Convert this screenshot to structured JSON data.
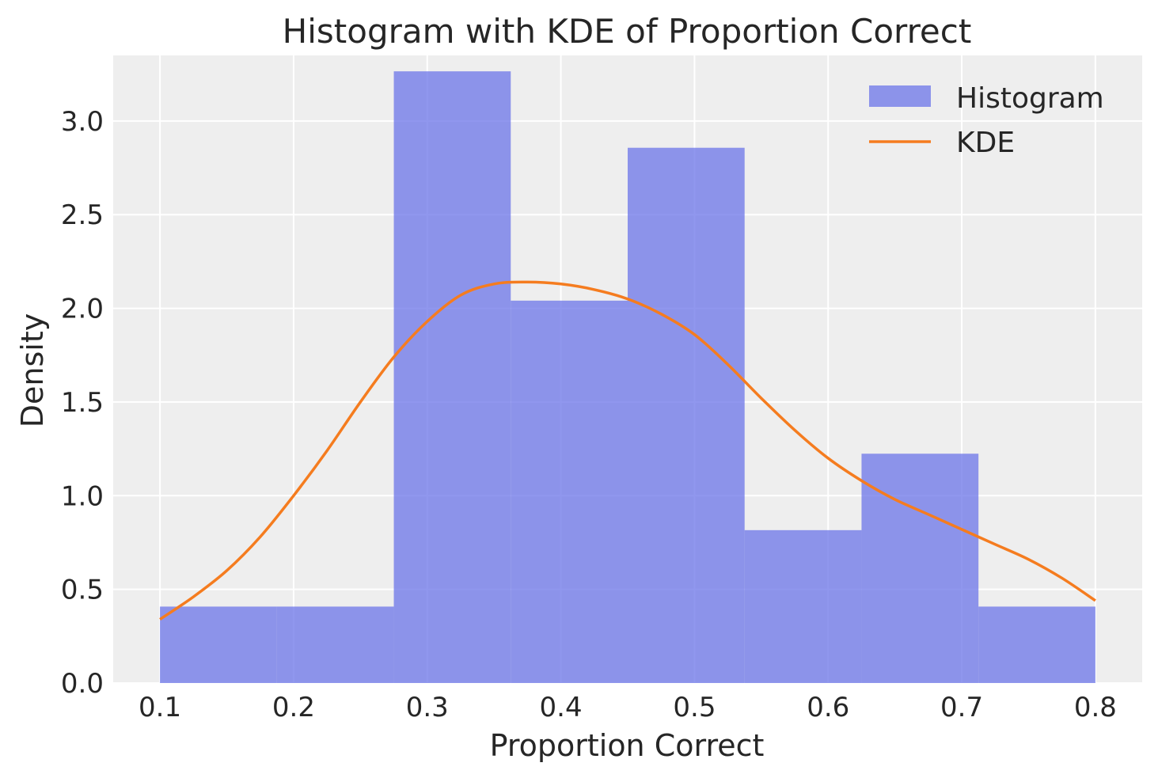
{
  "chart_data": {
    "type": "bar",
    "title": "Histogram with KDE of Proportion Correct",
    "xlabel": "Proportion Correct",
    "ylabel": "Density",
    "xlim": [
      0.065,
      0.835
    ],
    "ylim": [
      0,
      3.35
    ],
    "xticks": [
      0.1,
      0.2,
      0.3,
      0.4,
      0.5,
      0.6,
      0.7,
      0.8
    ],
    "xtick_labels": [
      "0.1",
      "0.2",
      "0.3",
      "0.4",
      "0.5",
      "0.6",
      "0.7",
      "0.8"
    ],
    "yticks": [
      0.0,
      0.5,
      1.0,
      1.5,
      2.0,
      2.5,
      3.0
    ],
    "ytick_labels": [
      "0.0",
      "0.5",
      "1.0",
      "1.5",
      "2.0",
      "2.5",
      "3.0"
    ],
    "grid": true,
    "legend_position": "top-right",
    "series": [
      {
        "name": "Histogram",
        "type": "histogram",
        "color": "#6b74e8",
        "bin_edges": [
          0.1,
          0.1875,
          0.275,
          0.3625,
          0.45,
          0.5375,
          0.625,
          0.7125,
          0.8
        ],
        "values": [
          0.408,
          0.408,
          3.265,
          2.041,
          2.857,
          0.816,
          1.224,
          0.408
        ]
      },
      {
        "name": "KDE",
        "type": "line",
        "color": "#f57c1f",
        "x": [
          0.1,
          0.125,
          0.15,
          0.175,
          0.2,
          0.225,
          0.25,
          0.275,
          0.3,
          0.325,
          0.35,
          0.375,
          0.4,
          0.425,
          0.45,
          0.475,
          0.5,
          0.525,
          0.55,
          0.575,
          0.6,
          0.625,
          0.65,
          0.675,
          0.7,
          0.725,
          0.75,
          0.775,
          0.8
        ],
        "y": [
          0.34,
          0.46,
          0.6,
          0.78,
          1.0,
          1.24,
          1.5,
          1.74,
          1.93,
          2.07,
          2.13,
          2.14,
          2.13,
          2.1,
          2.05,
          1.97,
          1.86,
          1.7,
          1.52,
          1.35,
          1.2,
          1.08,
          0.98,
          0.9,
          0.82,
          0.74,
          0.66,
          0.56,
          0.44
        ]
      }
    ]
  }
}
